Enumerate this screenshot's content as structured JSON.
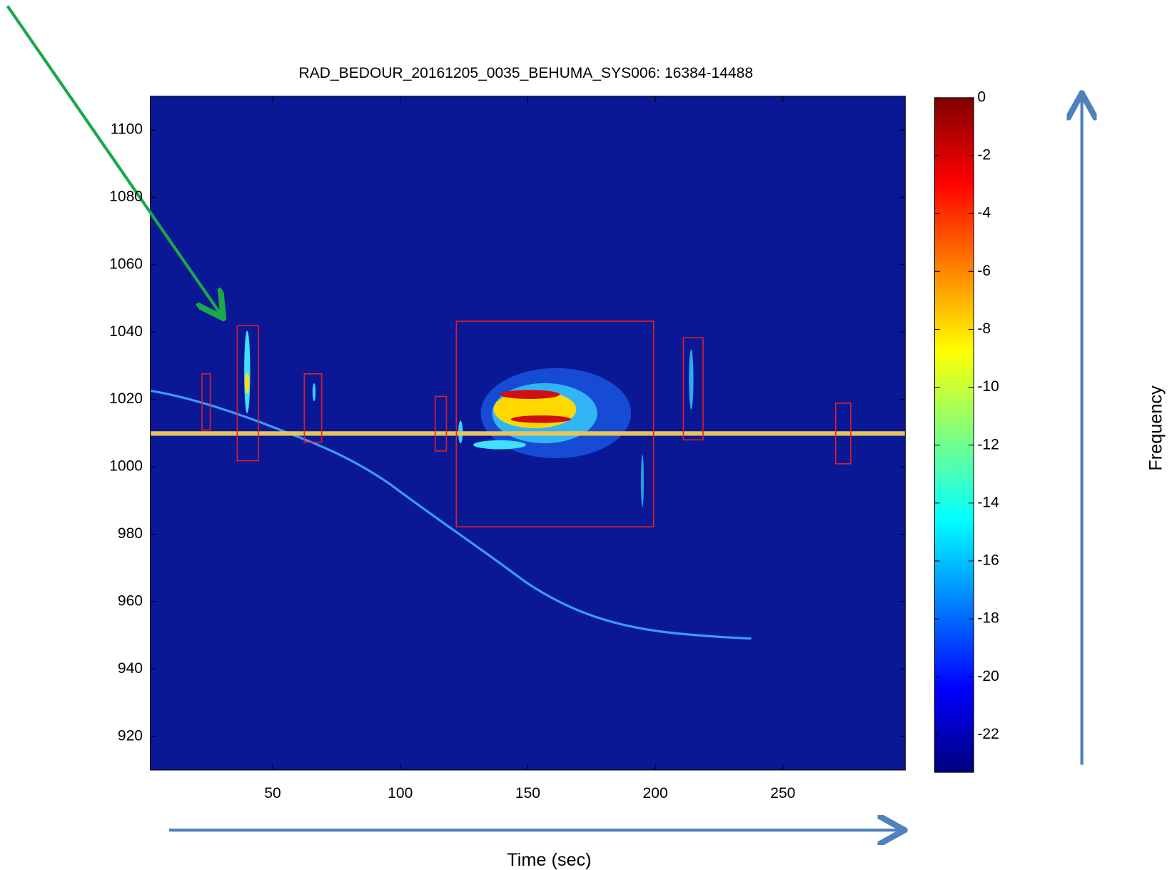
{
  "chart_data": {
    "type": "heatmap",
    "title": "RAD_BEDOUR_20161205_0035_BEHUMA_SYS006: 16384-14488",
    "x_label": "Time (sec)",
    "y_label": "Frequency",
    "xlim": [
      2,
      298
    ],
    "xticks": [
      50,
      100,
      150,
      200,
      250
    ],
    "ylim": [
      910,
      1110
    ],
    "yticks": [
      920,
      940,
      960,
      980,
      1000,
      1020,
      1040,
      1060,
      1080,
      1100
    ],
    "clim": [
      -23.3,
      0
    ],
    "cticks": [
      0,
      -2,
      -4,
      -6,
      -8,
      -10,
      -12,
      -14,
      -16,
      -18,
      -20,
      -22
    ],
    "box_color": "#e02020",
    "boxes": [
      {
        "x0": 22.3,
        "x1": 25.5,
        "y0": 1010.9,
        "y1": 1027.6
      },
      {
        "x0": 36.1,
        "x1": 44.4,
        "y0": 1001.8,
        "y1": 1041.9
      },
      {
        "x0": 62.4,
        "x1": 69.2,
        "y0": 1007.3,
        "y1": 1027.6
      },
      {
        "x0": 113.7,
        "x1": 118.1,
        "y0": 1004.7,
        "y1": 1020.9
      },
      {
        "x0": 122,
        "x1": 199.3,
        "y0": 982.2,
        "y1": 1043.2
      },
      {
        "x0": 211,
        "x1": 218.7,
        "y0": 1008,
        "y1": 1038.3
      },
      {
        "x0": 270.7,
        "x1": 276.6,
        "y0": 1000.9,
        "y1": 1018.9
      }
    ]
  }
}
